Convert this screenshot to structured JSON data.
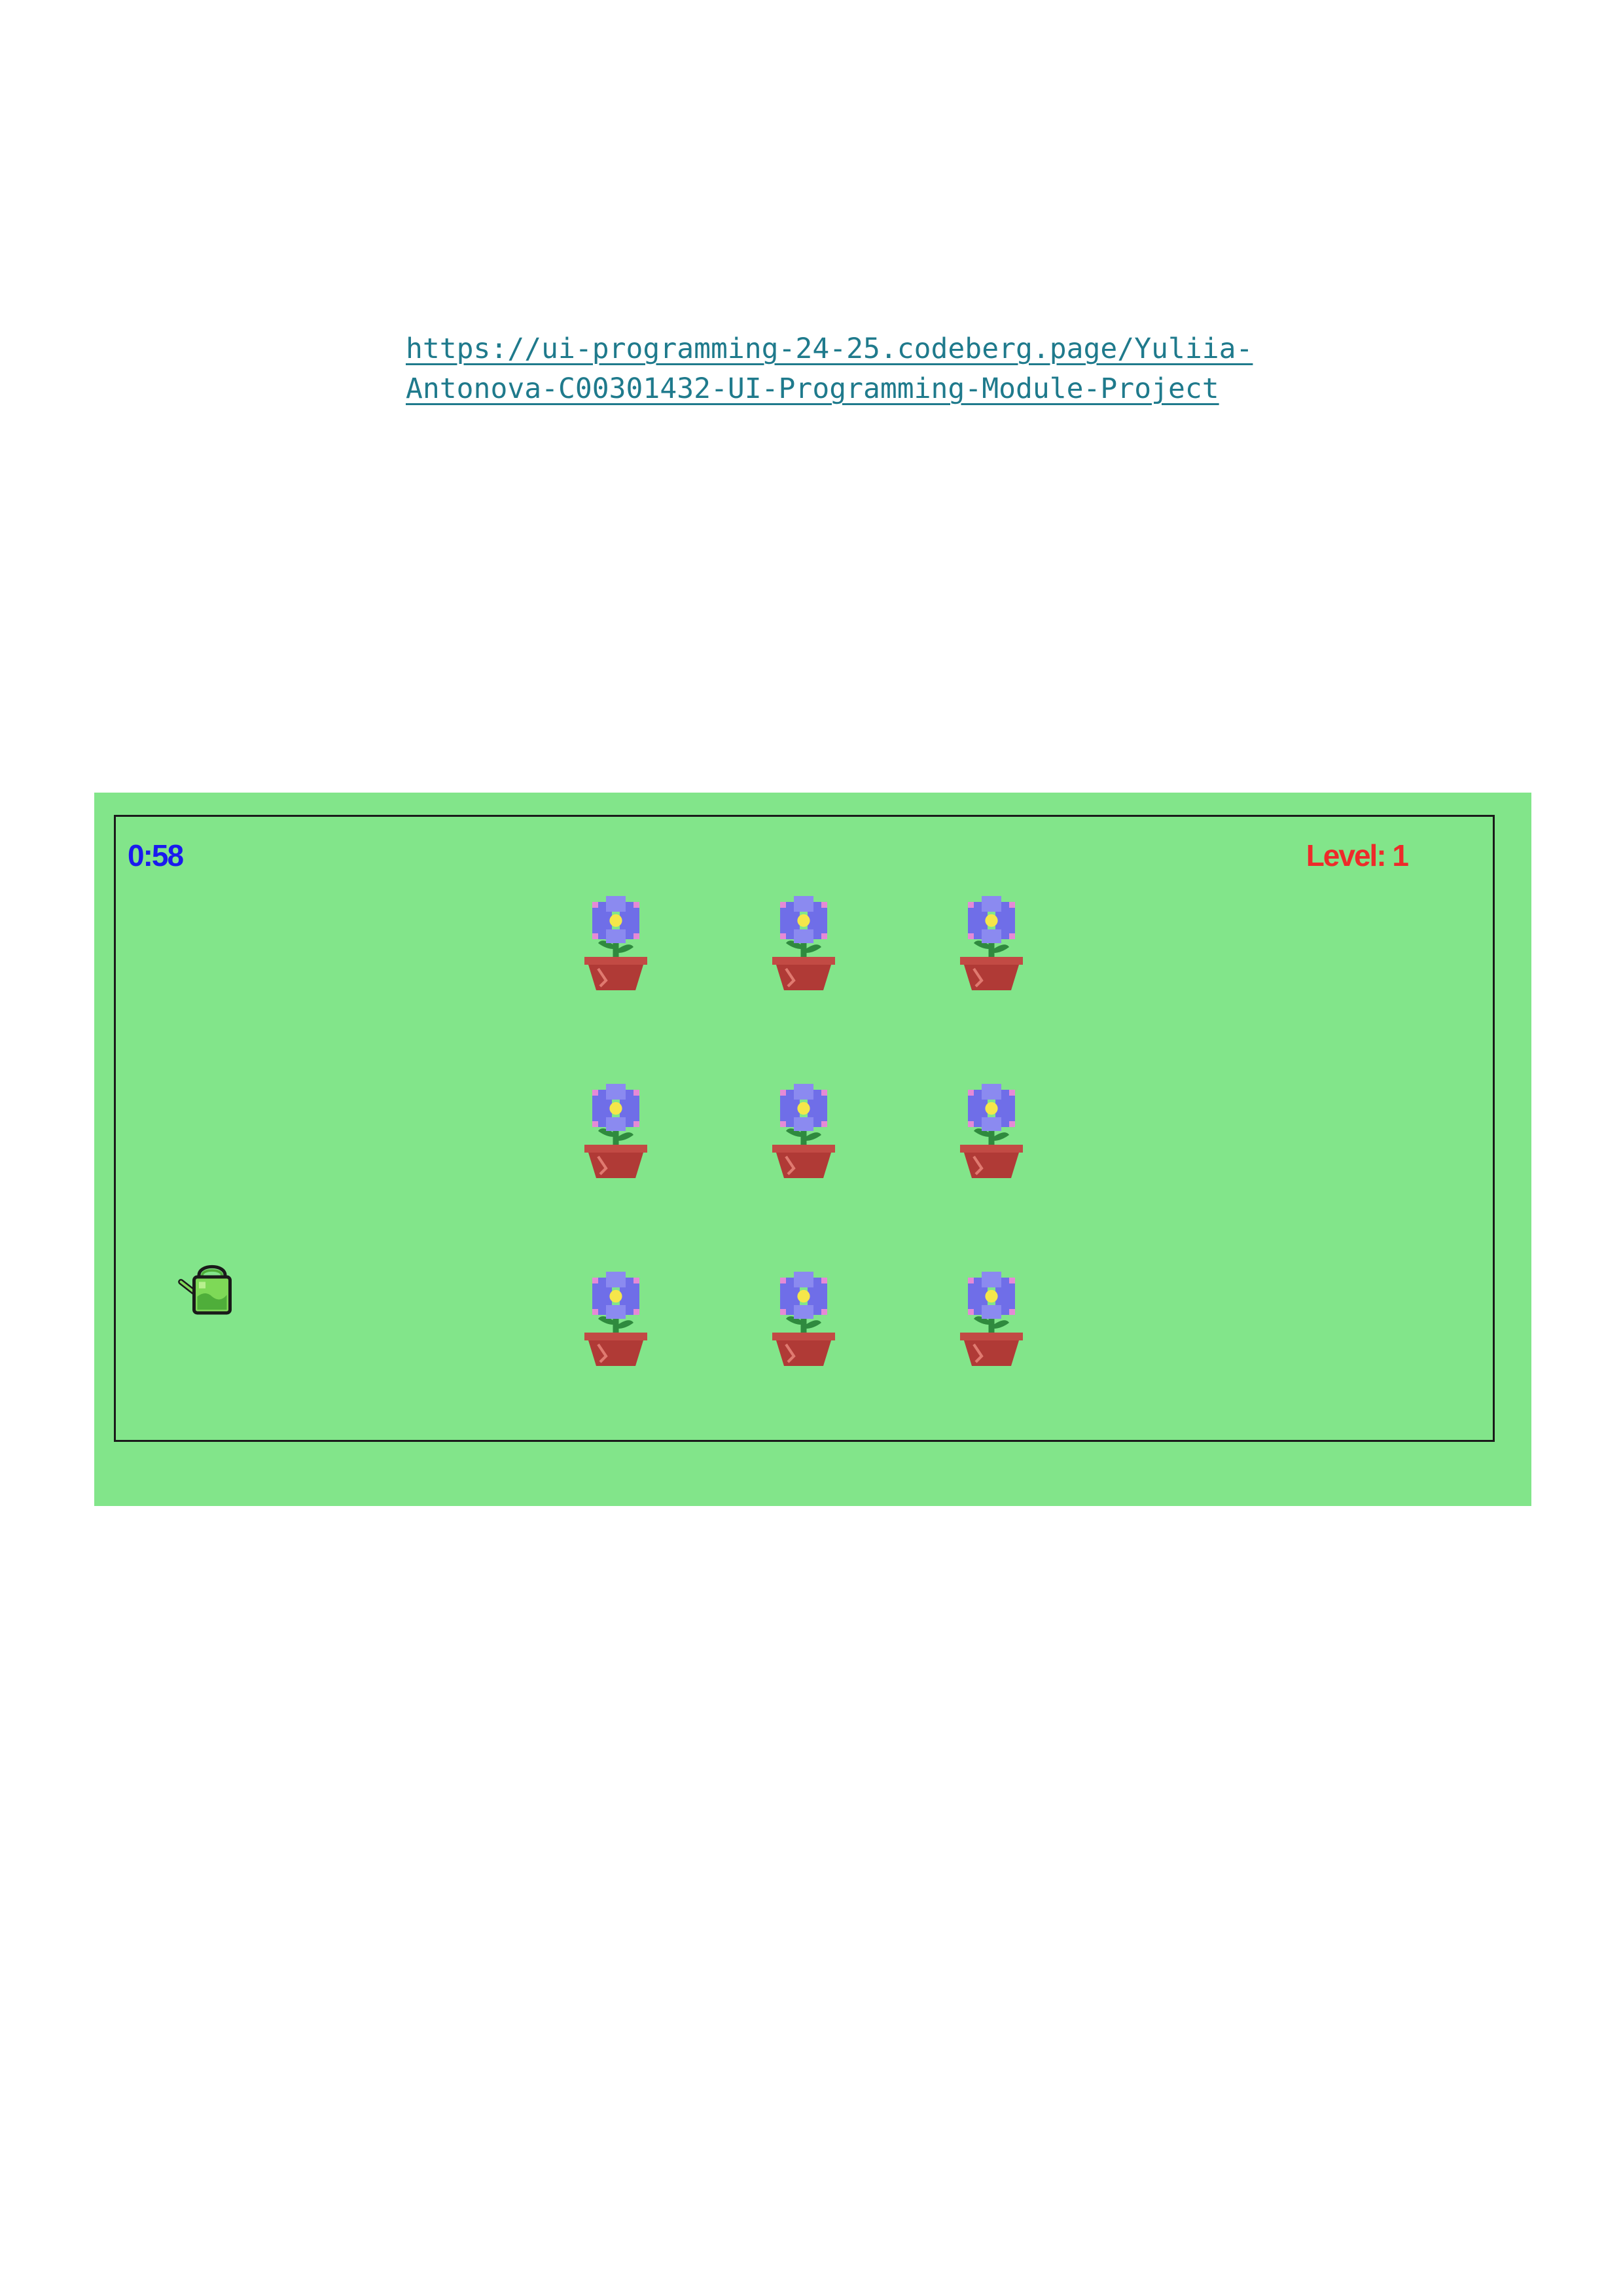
{
  "document": {
    "link_line_1": "https://ui-programming-24-25.codeberg.page/Yuliia-",
    "link_line_2": "Antonova-C00301432-UI-Programming-Module-Project"
  },
  "game": {
    "timer": "0:58",
    "level": "Level: 1",
    "flower_count": 9,
    "player_icon": "watering-can-icon",
    "target_icon": "flower-pot-icon",
    "colors": {
      "background": "#82e58a",
      "timer": "#1a1aee",
      "level": "#ee2a2a",
      "pot": "#b03a36",
      "petals": "#6f6ee8",
      "flower_center": "#f5e64a",
      "stem": "#2f8a3e",
      "watering_can": "#7ed957"
    }
  }
}
